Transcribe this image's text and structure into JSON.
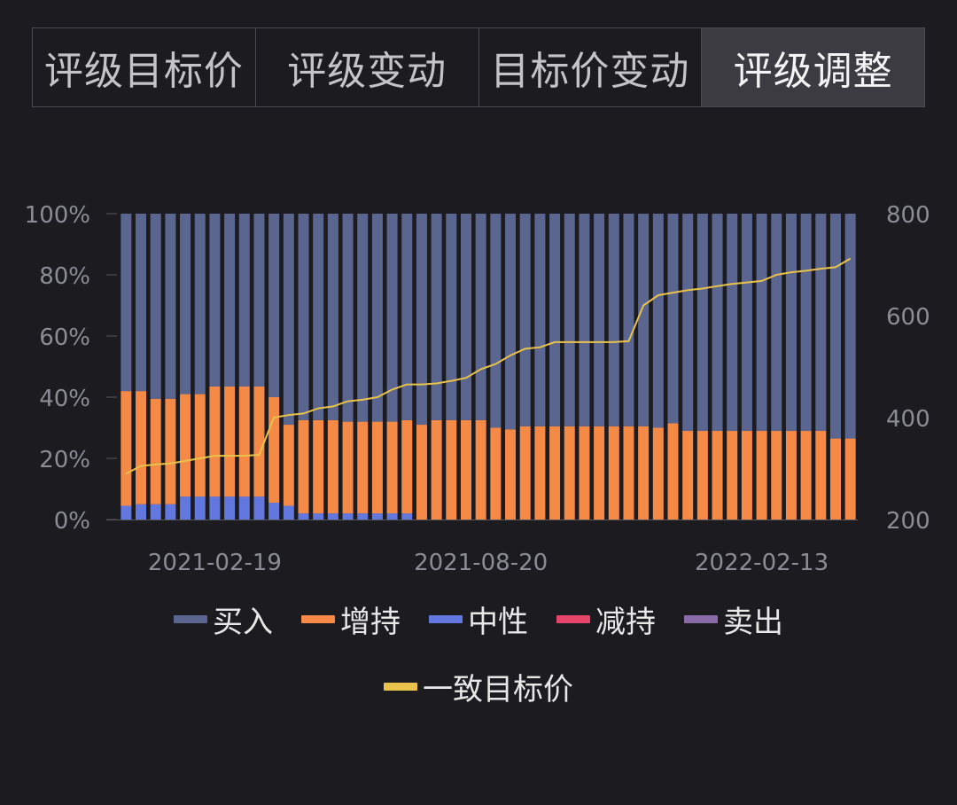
{
  "tabs": [
    {
      "label": "评级目标价",
      "active": false
    },
    {
      "label": "评级变动",
      "active": false
    },
    {
      "label": "目标价变动",
      "active": false
    },
    {
      "label": "评级调整",
      "active": true
    }
  ],
  "colors": {
    "buy": "#5a6690",
    "overweight": "#f58a47",
    "neutral": "#6378de",
    "underweight": "#e8456b",
    "sell": "#8a6aa8",
    "target": "#e8c24a",
    "axis_text": "#8c8c94"
  },
  "chart_data": {
    "type": "bar",
    "stacked": true,
    "y_left": {
      "ticks": [
        "0%",
        "20%",
        "40%",
        "60%",
        "80%",
        "100%"
      ],
      "range": [
        0,
        100
      ]
    },
    "y_right": {
      "ticks": [
        "200",
        "400",
        "600",
        "800"
      ],
      "range": [
        200,
        800
      ]
    },
    "x_tick_labels": [
      {
        "bar_index": 6,
        "label": "2021-02-19"
      },
      {
        "bar_index": 24,
        "label": "2021-08-20"
      },
      {
        "bar_index": 43,
        "label": "2022-02-13"
      }
    ],
    "series": [
      {
        "name": "中性",
        "key": "neutral",
        "values": [
          4.5,
          5,
          5,
          5,
          7.5,
          7.5,
          7.5,
          7.5,
          7.5,
          7.5,
          5.5,
          4.5,
          2,
          2,
          2,
          2,
          2,
          2,
          2,
          2,
          0,
          0,
          0,
          0,
          0,
          0,
          0,
          0,
          0,
          0,
          0,
          0,
          0,
          0,
          0,
          0,
          0,
          0,
          0,
          0,
          0,
          0,
          0,
          0,
          0,
          0,
          0,
          0,
          0,
          0
        ]
      },
      {
        "name": "增持",
        "key": "overweight",
        "values": [
          37.5,
          37,
          34.5,
          34.5,
          33.5,
          33.5,
          36,
          36,
          36,
          36,
          34.5,
          26.5,
          30.5,
          30.5,
          30.5,
          30,
          30,
          30,
          30,
          30.5,
          31,
          32.5,
          32.5,
          32.5,
          32.5,
          30,
          29.5,
          30.5,
          30.5,
          30.5,
          30.5,
          30.5,
          30.5,
          30.5,
          30.5,
          30.5,
          30,
          31.5,
          29,
          29,
          29,
          29,
          29,
          29,
          29,
          29,
          29,
          29,
          26.5,
          26.5
        ]
      },
      {
        "name": "减持",
        "key": "underweight",
        "values": [
          0,
          0,
          0,
          0,
          0,
          0,
          0,
          0,
          0,
          0,
          0,
          0,
          0,
          0,
          0,
          0,
          0,
          0,
          0,
          0,
          0,
          0,
          0,
          0,
          0,
          0,
          0,
          0,
          0,
          0,
          0,
          0,
          0,
          0,
          0,
          0,
          0,
          0,
          0,
          0,
          0,
          0,
          0,
          0,
          0,
          0,
          0,
          0,
          0,
          0
        ]
      },
      {
        "name": "卖出",
        "key": "sell",
        "values": [
          0,
          0,
          0,
          0,
          0,
          0,
          0,
          0,
          0,
          0,
          0,
          0,
          0,
          0,
          0,
          0,
          0,
          0,
          0,
          0,
          0,
          0,
          0,
          0,
          0,
          0,
          0,
          0,
          0,
          0,
          0,
          0,
          0,
          0,
          0,
          0,
          0,
          0,
          0,
          0,
          0,
          0,
          0,
          0,
          0,
          0,
          0,
          0,
          0,
          0
        ]
      },
      {
        "name": "买入",
        "key": "buy",
        "values": [
          58,
          58,
          60.5,
          60.5,
          59,
          59,
          56.5,
          56.5,
          56.5,
          56.5,
          60,
          69,
          67.5,
          67.5,
          67.5,
          68,
          68,
          68,
          68,
          67.5,
          69,
          67.5,
          67.5,
          67.5,
          67.5,
          70,
          70.5,
          69.5,
          69.5,
          69.5,
          69.5,
          69.5,
          69.5,
          69.5,
          69.5,
          69.5,
          70,
          68.5,
          71,
          71,
          71,
          71,
          71,
          71,
          71,
          71,
          71,
          71,
          73.5,
          73.5
        ]
      }
    ],
    "line": {
      "name": "一致目标价",
      "key": "target",
      "values": [
        290,
        305,
        308,
        310,
        315,
        320,
        325,
        325,
        325,
        327,
        400,
        405,
        408,
        418,
        422,
        432,
        435,
        440,
        455,
        465,
        465,
        467,
        472,
        478,
        495,
        505,
        522,
        535,
        538,
        548,
        548,
        548,
        548,
        548,
        550,
        620,
        640,
        645,
        650,
        653,
        658,
        662,
        665,
        668,
        680,
        685,
        688,
        692,
        695,
        712
      ]
    }
  },
  "legend": {
    "row1": [
      {
        "label": "买入",
        "key": "buy"
      },
      {
        "label": "增持",
        "key": "overweight"
      },
      {
        "label": "中性",
        "key": "neutral"
      },
      {
        "label": "减持",
        "key": "underweight"
      },
      {
        "label": "卖出",
        "key": "sell"
      }
    ],
    "row2": [
      {
        "label": "一致目标价",
        "key": "target"
      }
    ]
  }
}
